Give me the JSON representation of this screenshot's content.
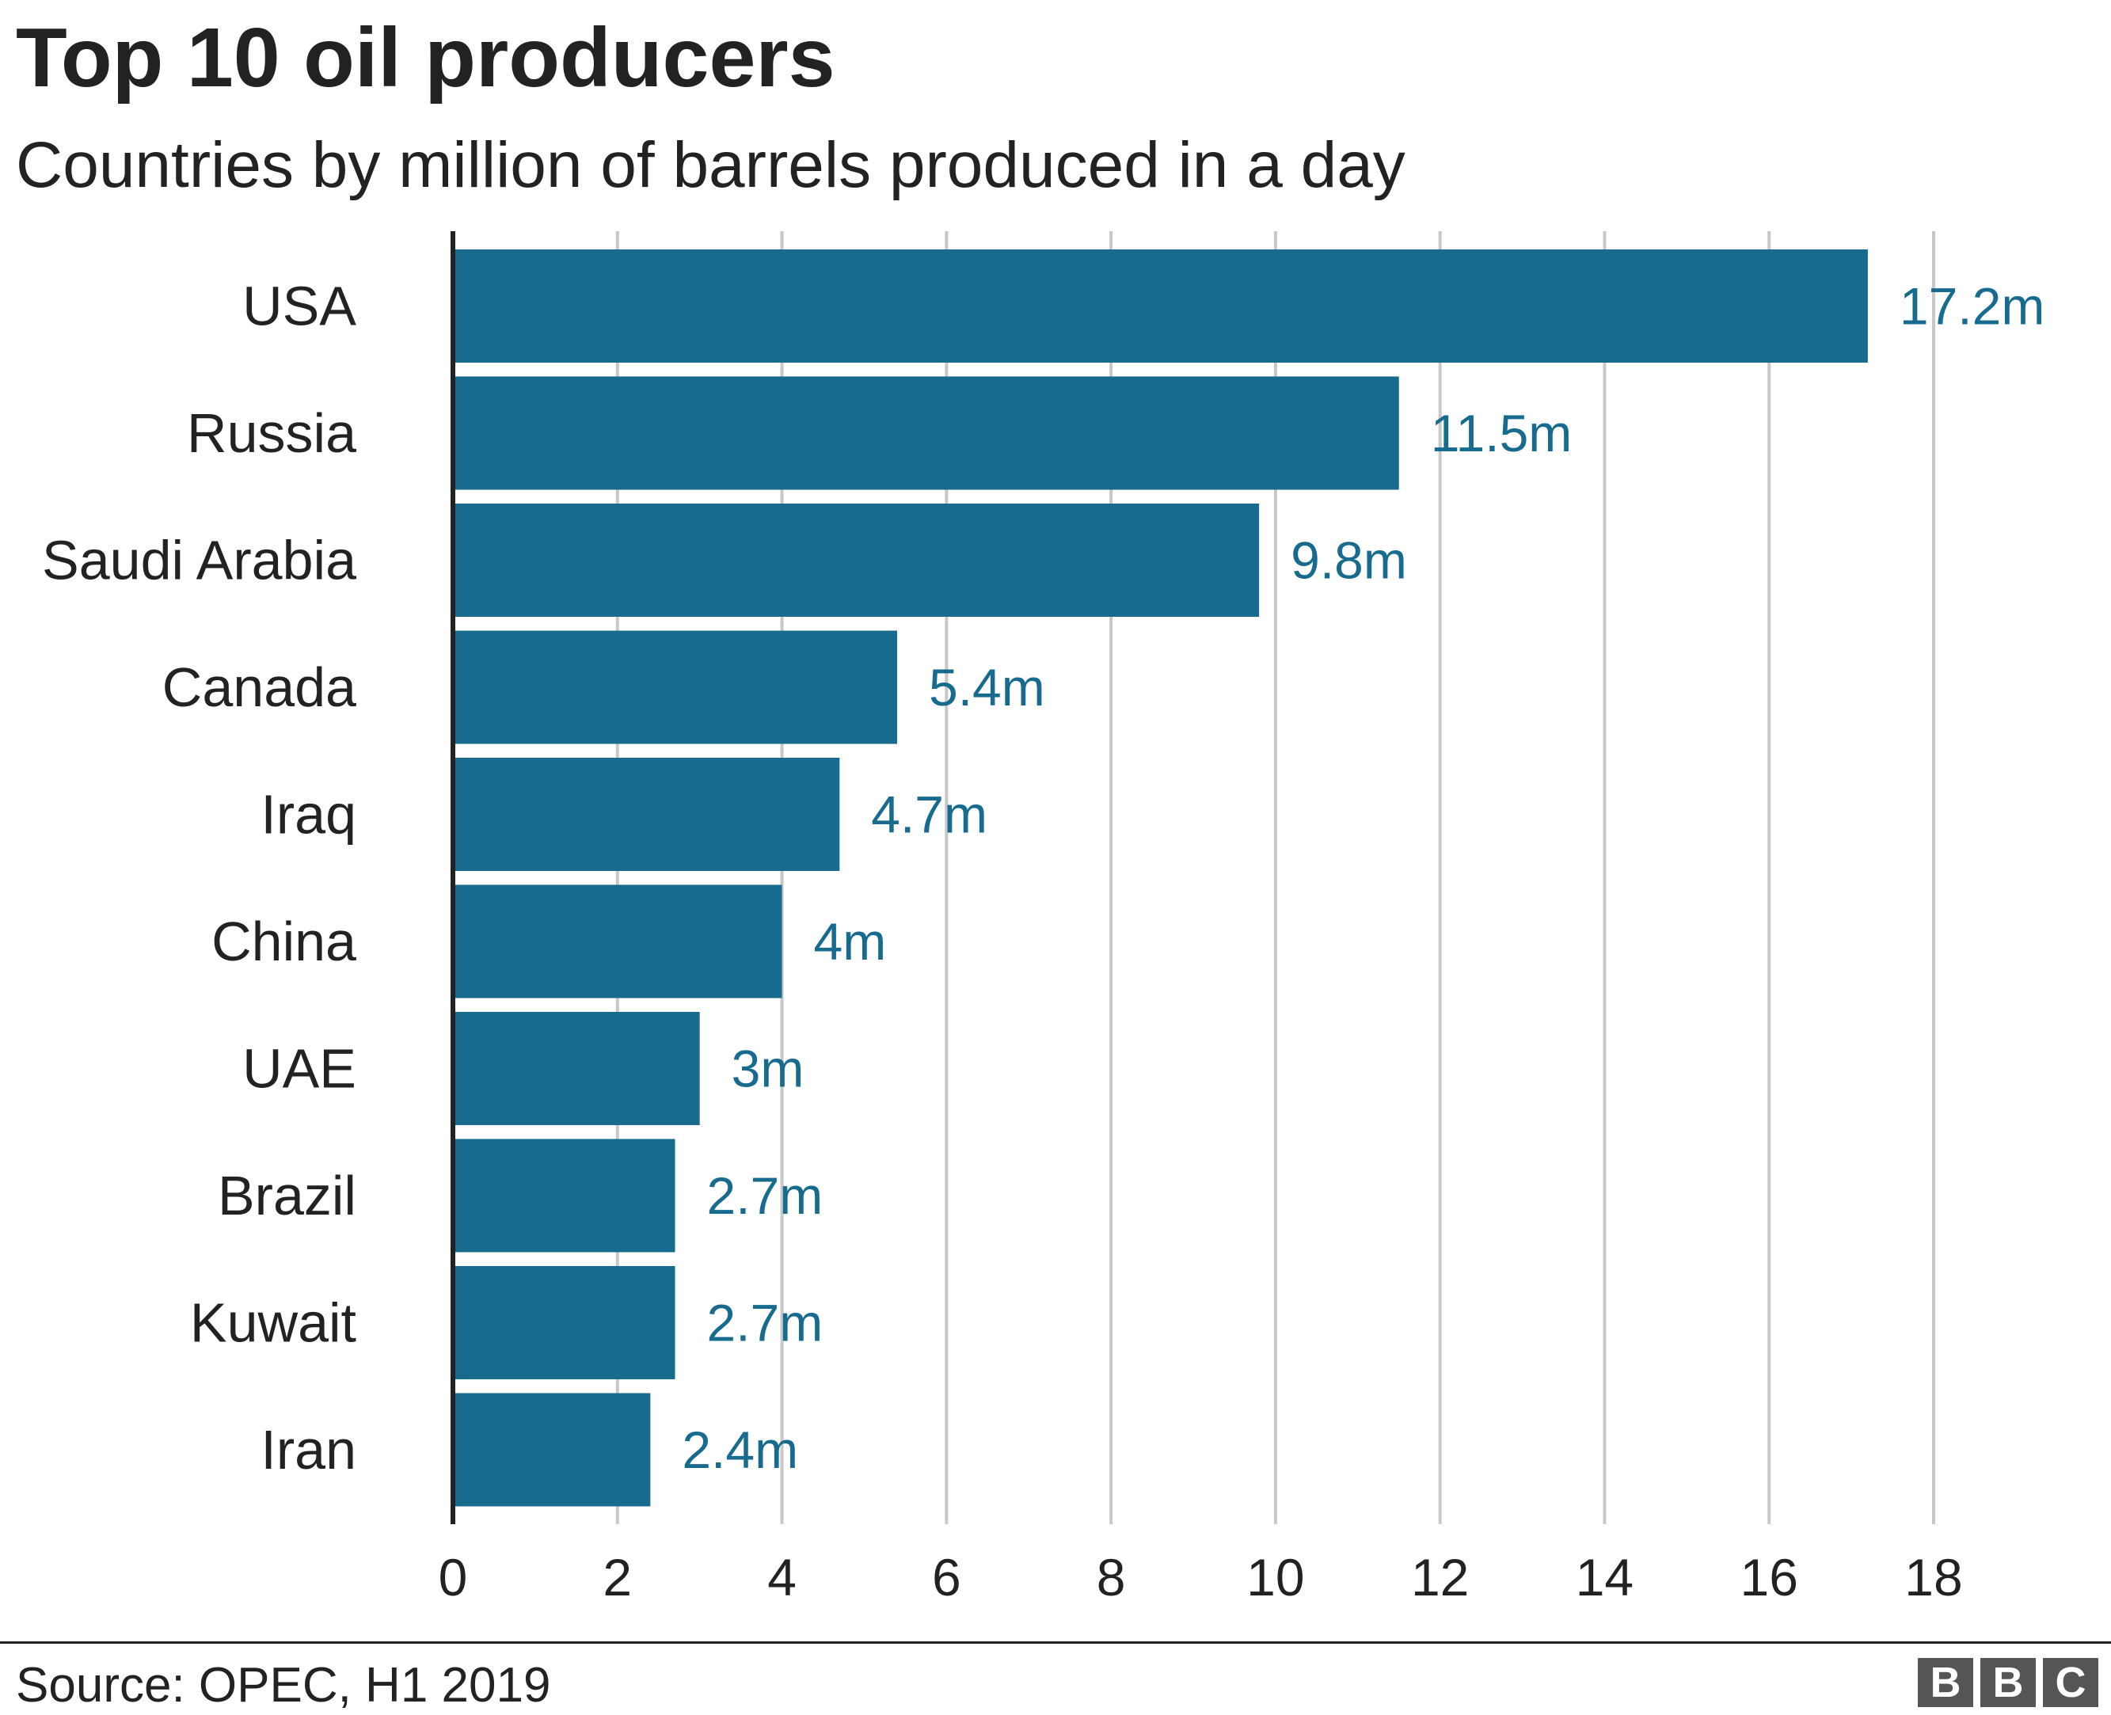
{
  "chart_data": {
    "type": "bar",
    "orientation": "horizontal",
    "title": "Top 10 oil producers",
    "subtitle": "Countries by million of barrels produced in a day",
    "categories": [
      "USA",
      "Russia",
      "Saudi Arabia",
      "Canada",
      "Iraq",
      "China",
      "UAE",
      "Brazil",
      "Kuwait",
      "Iran"
    ],
    "values": [
      17.2,
      11.5,
      9.8,
      5.4,
      4.7,
      4.0,
      3.0,
      2.7,
      2.7,
      2.4
    ],
    "data_labels": [
      "17.2m",
      "11.5m",
      "9.8m",
      "5.4m",
      "4.7m",
      "4m",
      "3m",
      "2.7m",
      "2.7m",
      "2.4m"
    ],
    "xlim": [
      0,
      18
    ],
    "x_ticks": [
      0,
      2,
      4,
      6,
      8,
      10,
      12,
      14,
      16,
      18
    ],
    "xlabel": "",
    "ylabel": "",
    "grid": "vertical",
    "legend": "none",
    "bar_color": "#176b8e",
    "label_color": "#176b8e",
    "grid_color": "#c8c8c8",
    "axis_color": "#222222"
  },
  "footer": {
    "source": "Source: OPEC, H1 2019",
    "logo_letters": [
      "B",
      "B",
      "C"
    ],
    "logo_color": "#555555"
  }
}
